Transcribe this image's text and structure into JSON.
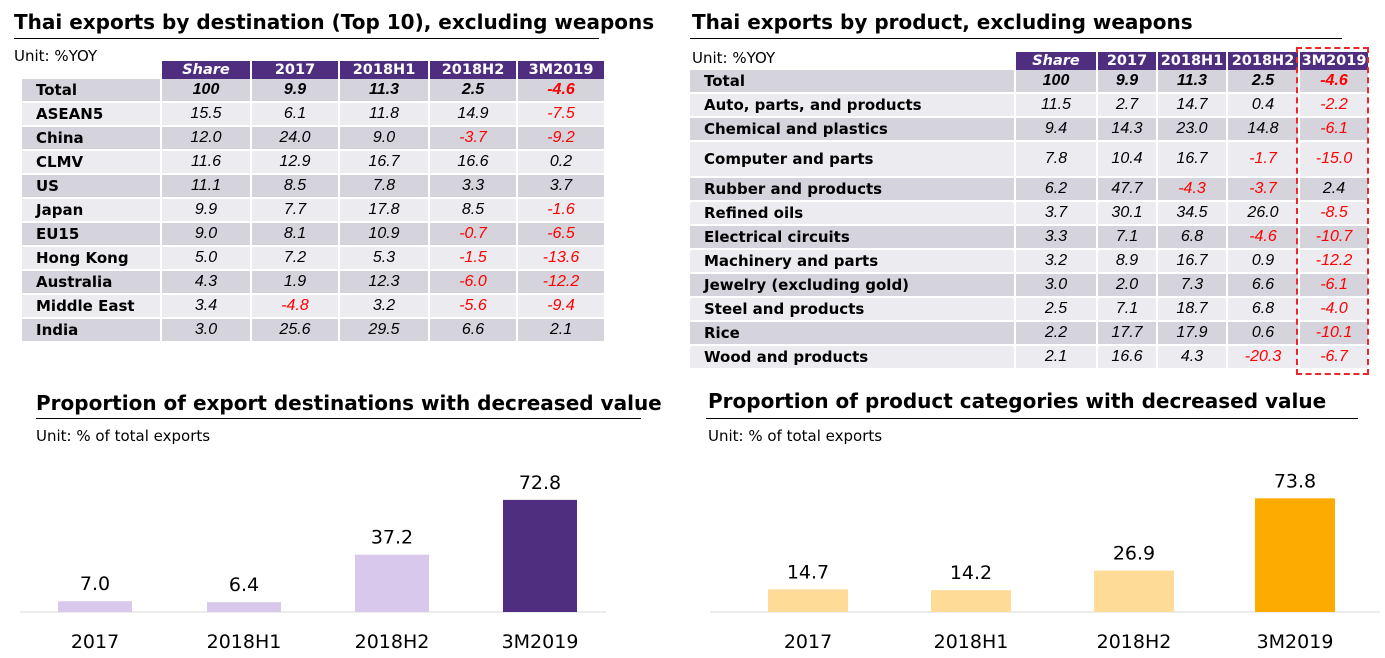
{
  "tables": [
    {
      "title": "Thai exports by destination (Top 10), excluding weapons",
      "unit": "Unit: %YOY",
      "columns": [
        "Share",
        "2017",
        "2018H1",
        "2018H2",
        "3M2019"
      ],
      "rows": [
        {
          "label": "Total",
          "values": [
            "100",
            "9.9",
            "11.3",
            "2.5",
            "-4.6"
          ]
        },
        {
          "label": "ASEAN5",
          "values": [
            "15.5",
            "6.1",
            "11.8",
            "14.9",
            "-7.5"
          ]
        },
        {
          "label": "China",
          "values": [
            "12.0",
            "24.0",
            "9.0",
            "-3.7",
            "-9.2"
          ]
        },
        {
          "label": "CLMV",
          "values": [
            "11.6",
            "12.9",
            "16.7",
            "16.6",
            "0.2"
          ]
        },
        {
          "label": "US",
          "values": [
            "11.1",
            "8.5",
            "7.8",
            "3.3",
            "3.7"
          ]
        },
        {
          "label": "Japan",
          "values": [
            "9.9",
            "7.7",
            "17.8",
            "8.5",
            "-1.6"
          ]
        },
        {
          "label": "EU15",
          "values": [
            "9.0",
            "8.1",
            "10.9",
            "-0.7",
            "-6.5"
          ]
        },
        {
          "label": "Hong Kong",
          "values": [
            "5.0",
            "7.2",
            "5.3",
            "-1.5",
            "-13.6"
          ]
        },
        {
          "label": "Australia",
          "values": [
            "4.3",
            "1.9",
            "12.3",
            "-6.0",
            "-12.2"
          ]
        },
        {
          "label": "Middle East",
          "values": [
            "3.4",
            "-4.8",
            "3.2",
            "-5.6",
            "-9.4"
          ]
        },
        {
          "label": "India",
          "values": [
            "3.0",
            "25.6",
            "29.5",
            "6.6",
            "2.1"
          ]
        }
      ]
    },
    {
      "title": "Thai exports by product, excluding weapons",
      "unit": "Unit: %YOY",
      "columns": [
        "Share",
        "2017",
        "2018H1",
        "2018H2",
        "3M2019"
      ],
      "rows": [
        {
          "label": "Total",
          "values": [
            "100",
            "9.9",
            "11.3",
            "2.5",
            "-4.6"
          ]
        },
        {
          "label": "Auto, parts, and products",
          "values": [
            "11.5",
            "2.7",
            "14.7",
            "0.4",
            "-2.2"
          ]
        },
        {
          "label": "Chemical and plastics",
          "values": [
            "9.4",
            "14.3",
            "23.0",
            "14.8",
            "-6.1"
          ]
        },
        {
          "label": "Computer and parts",
          "values": [
            "7.8",
            "10.4",
            "16.7",
            "-1.7",
            "-15.0"
          ]
        },
        {
          "label": "Rubber and products",
          "values": [
            "6.2",
            "47.7",
            "-4.3",
            "-3.7",
            "2.4"
          ]
        },
        {
          "label": "Refined oils",
          "values": [
            "3.7",
            "30.1",
            "34.5",
            "26.0",
            "-8.5"
          ]
        },
        {
          "label": "Electrical circuits",
          "values": [
            "3.3",
            "7.1",
            "6.8",
            "-4.6",
            "-10.7"
          ]
        },
        {
          "label": "Machinery and parts",
          "values": [
            "3.2",
            "8.9",
            "16.7",
            "0.9",
            "-12.2"
          ]
        },
        {
          "label": "Jewelry (excluding gold)",
          "values": [
            "3.0",
            "2.0",
            "7.3",
            "6.6",
            "-6.1"
          ]
        },
        {
          "label": "Steel and products",
          "values": [
            "2.5",
            "7.1",
            "18.7",
            "6.8",
            "-4.0"
          ]
        },
        {
          "label": "Rice",
          "values": [
            "2.2",
            "17.7",
            "17.9",
            "0.6",
            "-10.1"
          ]
        },
        {
          "label": "Wood and products",
          "values": [
            "2.1",
            "16.6",
            "4.3",
            "-20.3",
            "-6.7"
          ]
        }
      ]
    }
  ],
  "chart_data": [
    {
      "type": "bar",
      "title": "Proportion of export destinations with decreased value",
      "unit": "Unit:  % of total exports",
      "categories": [
        "2017",
        "2018H1",
        "2018H2",
        "3M2019"
      ],
      "values": [
        7.0,
        6.4,
        37.2,
        72.8
      ],
      "value_labels": [
        "7.0",
        "6.4",
        "37.2",
        "72.8"
      ],
      "colors": [
        "#d8c9ec",
        "#d8c9ec",
        "#d8c9ec",
        "#4f2d7f"
      ],
      "ylim": [
        0,
        100
      ],
      "grid": false,
      "xlabel": "",
      "ylabel": ""
    },
    {
      "type": "bar",
      "title": "Proportion of product categories with decreased value",
      "unit": "Unit:  % of total exports",
      "categories": [
        "2017",
        "2018H1",
        "2018H2",
        "3M2019"
      ],
      "values": [
        14.7,
        14.2,
        26.9,
        73.8
      ],
      "value_labels": [
        "14.7",
        "14.2",
        "26.9",
        "73.8"
      ],
      "colors": [
        "#fedb96",
        "#fedb96",
        "#fedb96",
        "#fdaa01"
      ],
      "ylim": [
        0,
        100
      ],
      "grid": false,
      "xlabel": "",
      "ylabel": ""
    }
  ]
}
